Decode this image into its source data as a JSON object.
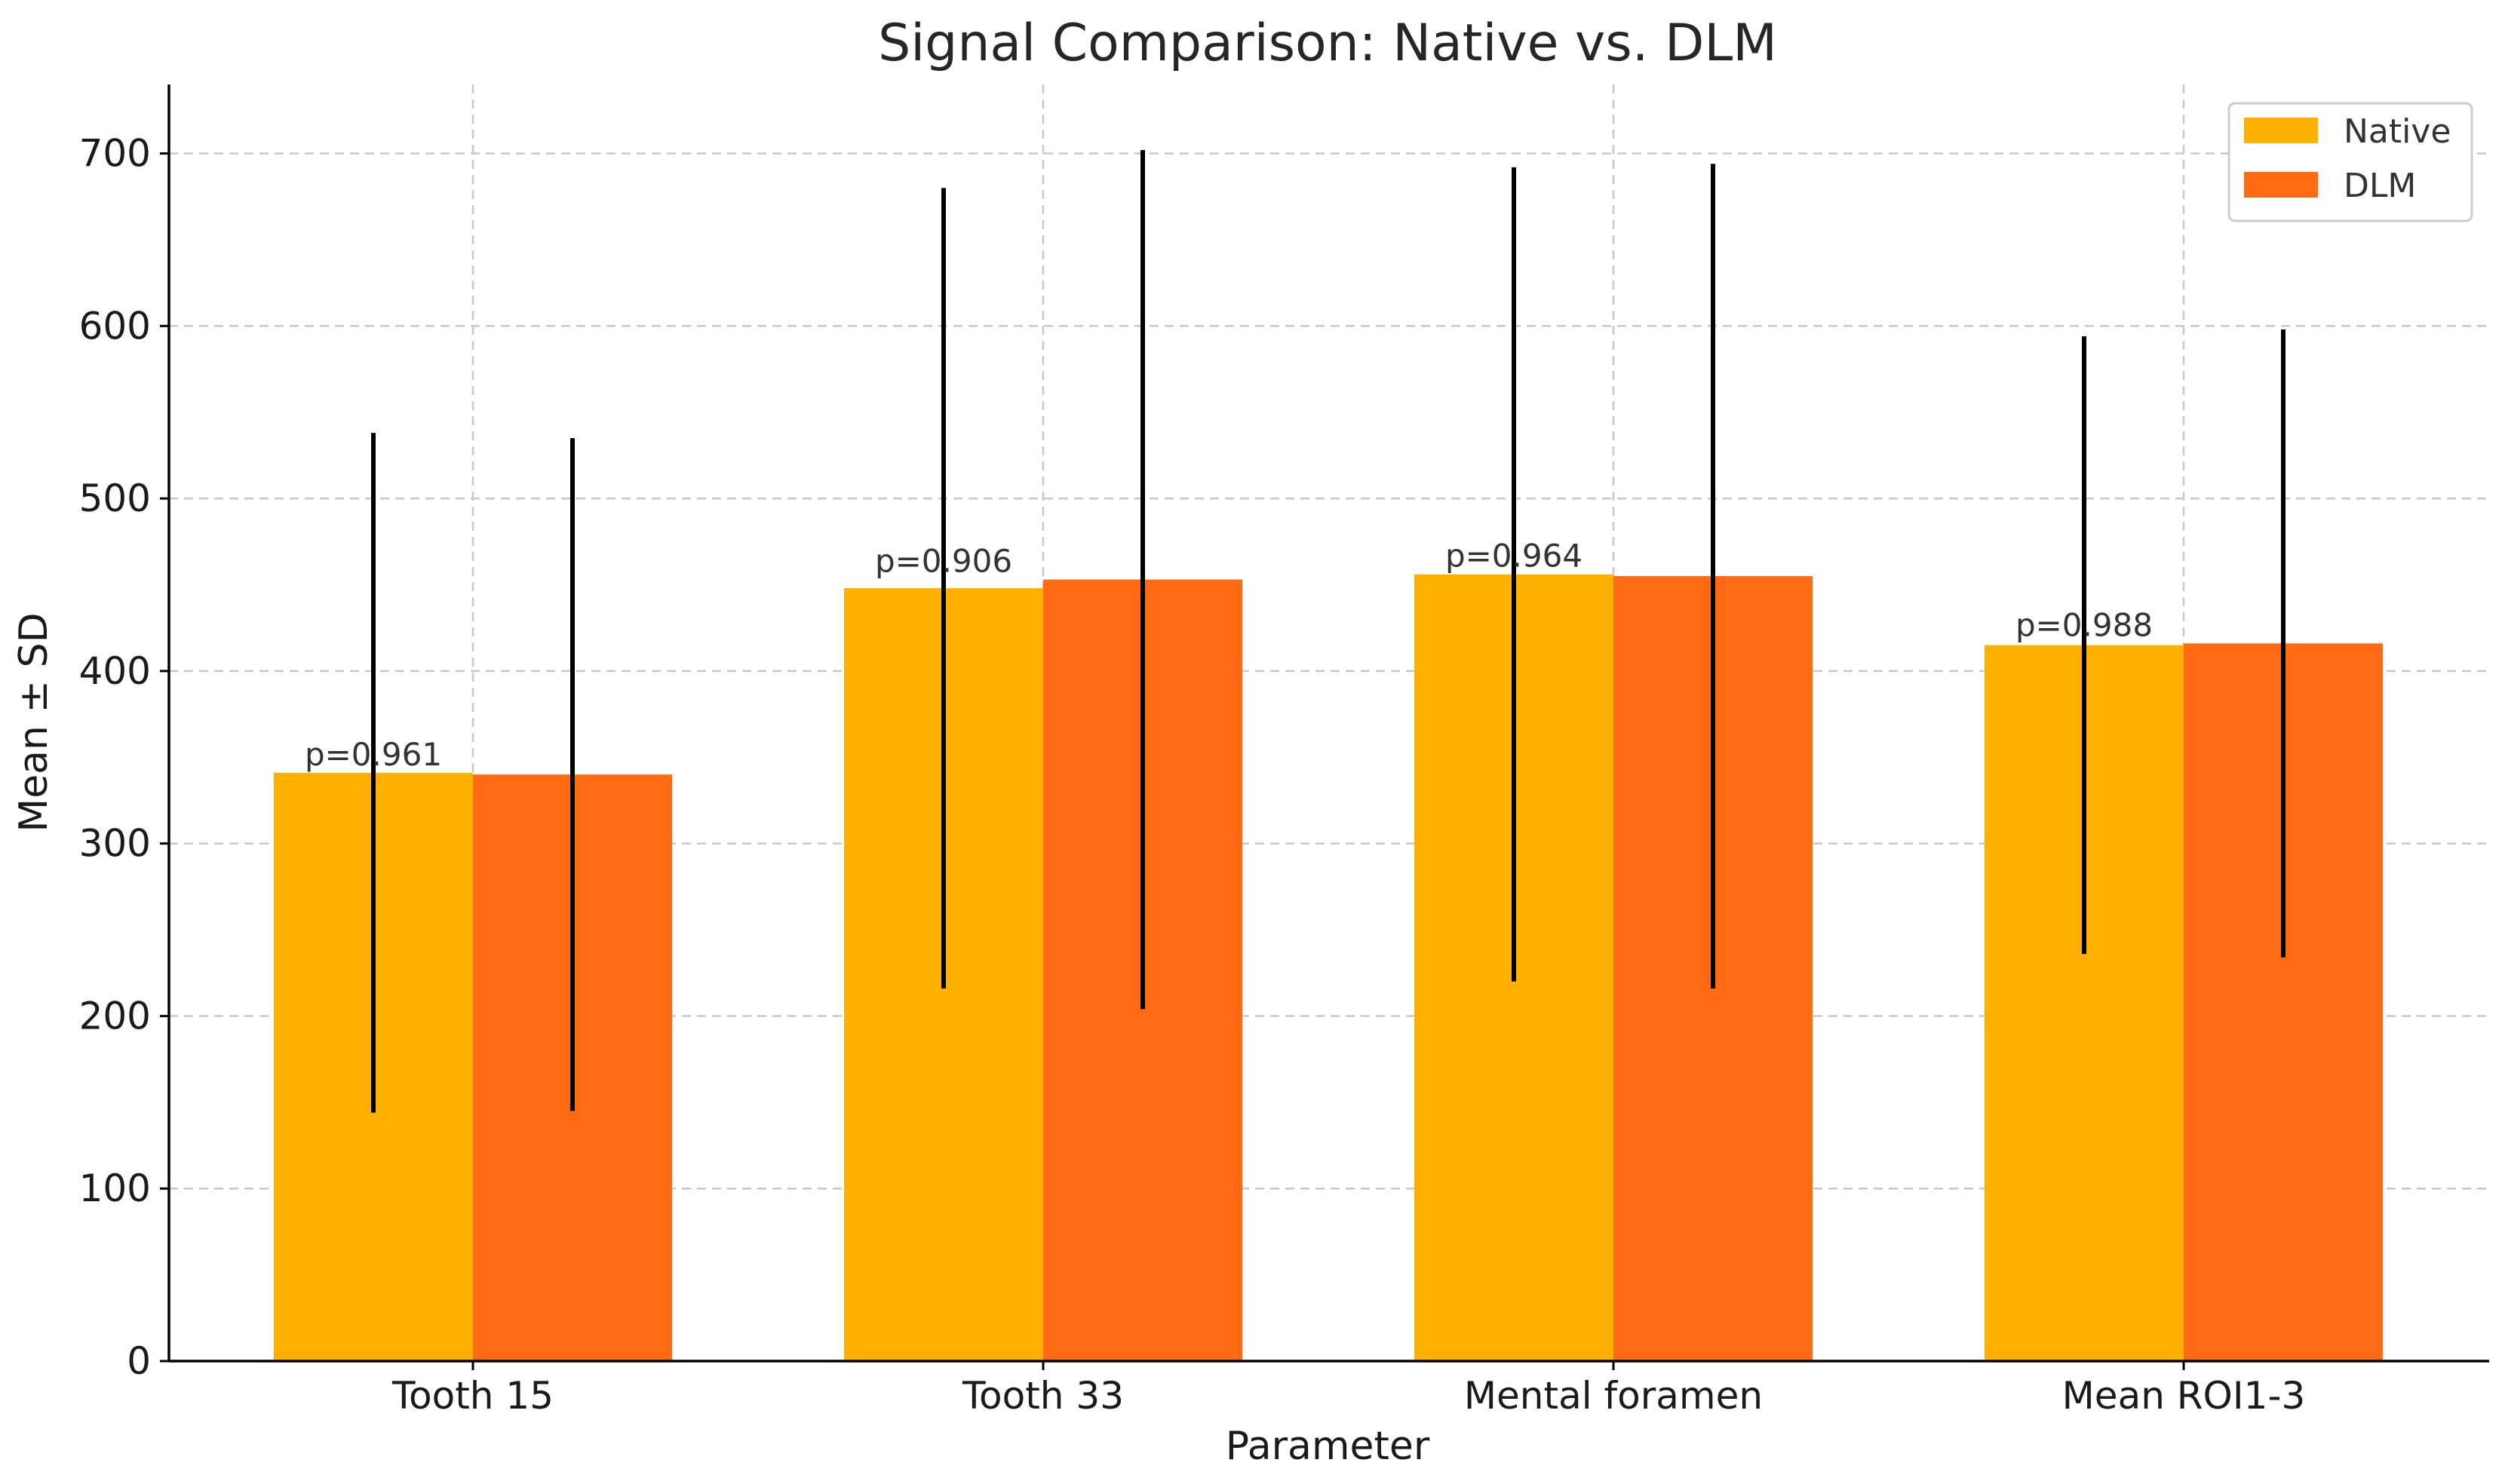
{
  "chart_data": {
    "type": "bar",
    "title": "Signal Comparison: Native vs. DLM",
    "xlabel": "Parameter",
    "ylabel": "Mean ± SD",
    "ylim": [
      0,
      740
    ],
    "yticks": [
      0,
      100,
      200,
      300,
      400,
      500,
      600,
      700
    ],
    "grid": true,
    "legend_position": "top-right",
    "categories": [
      "Tooth 15",
      "Tooth 33",
      "Mental foramen",
      "Mean ROI1-3"
    ],
    "series": [
      {
        "name": "Native",
        "color": "#FFB000",
        "values": [
          341,
          448,
          456,
          415
        ],
        "sd": [
          197,
          232,
          236,
          179
        ]
      },
      {
        "name": "DLM",
        "color": "#FF6A13",
        "values": [
          340,
          453,
          455,
          416
        ],
        "sd": [
          195,
          249,
          239,
          182
        ]
      }
    ],
    "annotations": [
      "p=0.961",
      "p=0.906",
      "p=0.964",
      "p=0.988"
    ],
    "error_bar_color": "#000000"
  }
}
